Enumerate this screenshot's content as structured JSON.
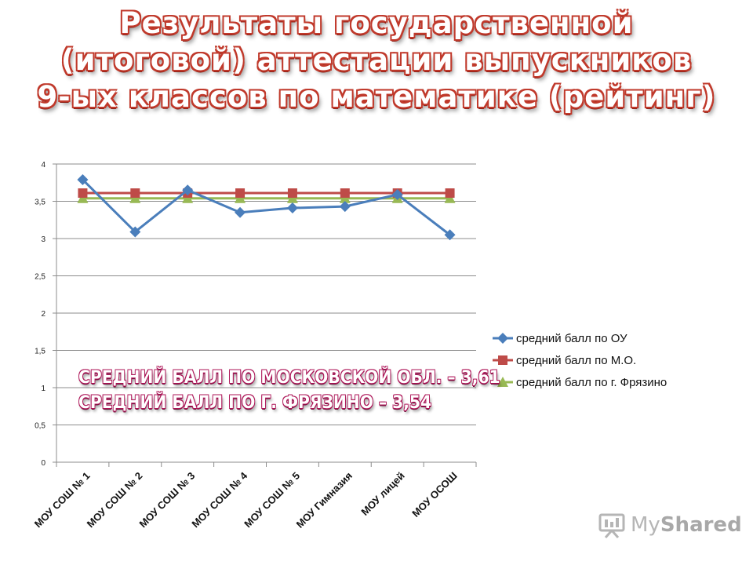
{
  "title": {
    "line1": "Результаты государственной",
    "line2": "(итоговой) аттестации выпускников",
    "line3": "9-ых классов по математике (рейтинг)"
  },
  "overlay": {
    "line1": "средний балл по Московской обл. – 3,61",
    "line2": "средний балл по г. Фрязино – 3,54"
  },
  "watermark": {
    "text_prefix": "My",
    "text_suffix": "Shared"
  },
  "colors": {
    "ou": "#4a7ebb",
    "mo": "#be4b48",
    "fryazino": "#98b954",
    "title_outline": "#c0392b"
  },
  "chart_data": {
    "type": "line",
    "categories": [
      "МОУ СОШ № 1",
      "МОУ СОШ № 2",
      "МОУ СОШ № 3",
      "МОУ СОШ № 4",
      "МОУ СОШ № 5",
      "МОУ Гимназия",
      "МОУ лицей",
      "МОУ ОСОШ"
    ],
    "series": [
      {
        "name": "средний балл по ОУ",
        "values": [
          3.79,
          3.09,
          3.65,
          3.35,
          3.41,
          3.43,
          3.59,
          3.05
        ],
        "marker": "diamond",
        "color": "#4a7ebb"
      },
      {
        "name": "средний балл по М.О.",
        "values": [
          3.61,
          3.61,
          3.61,
          3.61,
          3.61,
          3.61,
          3.61,
          3.61
        ],
        "marker": "square",
        "color": "#be4b48"
      },
      {
        "name": "средний балл по г. Фрязино",
        "values": [
          3.54,
          3.54,
          3.54,
          3.54,
          3.54,
          3.54,
          3.54,
          3.54
        ],
        "marker": "triangle",
        "color": "#98b954"
      }
    ],
    "ylim": [
      0,
      4
    ],
    "yticks": [
      "0",
      "0,5",
      "1",
      "1,5",
      "2",
      "2,5",
      "3",
      "3,5",
      "4"
    ],
    "grid": true,
    "legend": "right"
  }
}
